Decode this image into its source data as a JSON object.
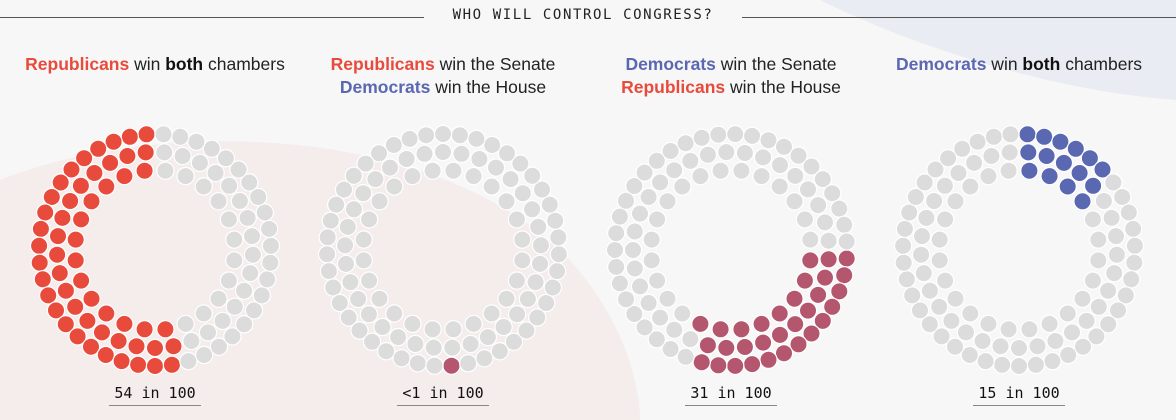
{
  "header": {
    "title": "WHO WILL CONTROL CONGRESS?"
  },
  "colors": {
    "republican": "#e84b3c",
    "democrat": "#5a68b2",
    "split": "#b5566f",
    "empty": "#dcdcdc",
    "background": "#f7f7f7"
  },
  "panels": [
    {
      "caption_lines": [
        [
          {
            "text": "Republicans",
            "style": "rep"
          },
          {
            "text": " win ",
            "style": "plain"
          },
          {
            "text": "both",
            "style": "emph"
          },
          {
            "text": " chambers",
            "style": "plain"
          }
        ]
      ],
      "odds": "54 in 100"
    },
    {
      "caption_lines": [
        [
          {
            "text": "Republicans",
            "style": "rep"
          },
          {
            "text": " win the Senate",
            "style": "plain"
          }
        ],
        [
          {
            "text": "Democrats",
            "style": "dem"
          },
          {
            "text": " win the House",
            "style": "plain"
          }
        ]
      ],
      "odds": "<1 in 100"
    },
    {
      "caption_lines": [
        [
          {
            "text": "Democrats",
            "style": "dem"
          },
          {
            "text": " win the Senate",
            "style": "plain"
          }
        ],
        [
          {
            "text": "Republicans",
            "style": "rep"
          },
          {
            "text": " win the House",
            "style": "plain"
          }
        ]
      ],
      "odds": "31 in 100"
    },
    {
      "caption_lines": [
        [
          {
            "text": "Democrats",
            "style": "dem"
          },
          {
            "text": " win ",
            "style": "plain"
          },
          {
            "text": "both",
            "style": "emph"
          },
          {
            "text": " chambers",
            "style": "plain"
          }
        ]
      ],
      "odds": "15 in 100"
    }
  ],
  "chart_data": {
    "type": "pie",
    "title": "WHO WILL CONTROL CONGRESS?",
    "unit": "chances in 100",
    "total_dots_per_ring": 100,
    "categories": [
      "Republicans win both chambers",
      "Republicans win the Senate, Democrats win the House",
      "Democrats win the Senate, Republicans win the House",
      "Democrats win both chambers"
    ],
    "values": [
      54,
      0.5,
      31,
      15
    ],
    "labels": [
      "54 in 100",
      "<1 in 100",
      "31 in 100",
      "15 in 100"
    ],
    "highlight_colors": [
      "#e84b3c",
      "#b5566f",
      "#b5566f",
      "#5a68b2"
    ]
  }
}
